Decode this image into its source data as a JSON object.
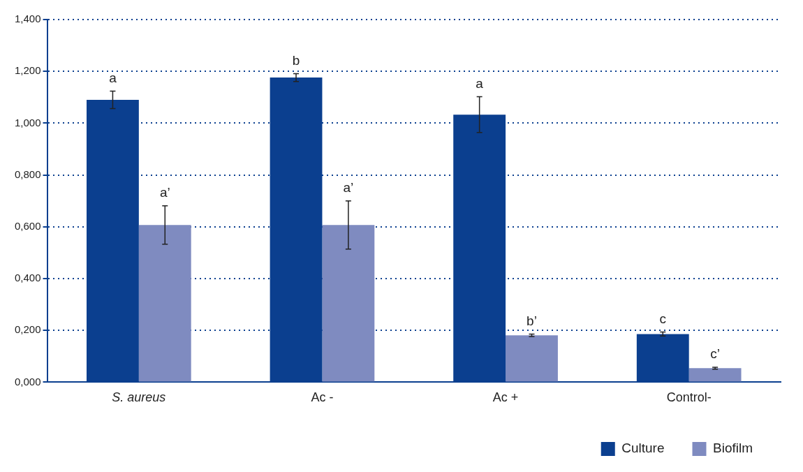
{
  "chart_data": {
    "type": "bar",
    "categories": [
      "S. aureus",
      "Ac -",
      "Ac +",
      "Control-"
    ],
    "series": [
      {
        "name": "Culture",
        "color": "#0b3f8f",
        "values": [
          1.09,
          1.176,
          1.033,
          0.186
        ],
        "errors": [
          0.034,
          0.015,
          0.069,
          0.008
        ]
      },
      {
        "name": "Biofilm",
        "color": "#7f8bc0",
        "values": [
          0.607,
          0.607,
          0.181,
          0.054
        ],
        "errors": [
          0.074,
          0.093,
          0.005,
          0.004
        ]
      }
    ],
    "ylim": [
      0,
      1.4
    ],
    "yticks": [
      {
        "value": 0,
        "label": "0,000"
      },
      {
        "value": 0.2,
        "label": "0,200"
      },
      {
        "value": 0.4,
        "label": "0,400"
      },
      {
        "value": 0.6,
        "label": "0,600"
      },
      {
        "value": 0.8,
        "label": "0,800"
      },
      {
        "value": 1,
        "label": "1,000"
      },
      {
        "value": 1.2,
        "label": "1,200"
      },
      {
        "value": 1.4,
        "label": "1,400"
      }
    ],
    "grid": "y",
    "legend": "bottom right",
    "annotations": [
      {
        "text": "a",
        "x": "S. aureus",
        "y": 1.09
      },
      {
        "text": "b",
        "x": "Ac -",
        "y": 1.176
      },
      {
        "text": "a",
        "x": "Ac +",
        "y": 1.033
      },
      {
        "text": "c",
        "x": "Control-",
        "y": 0.186
      },
      {
        "text": "a’",
        "x": "S. aureus",
        "y": 0.607
      },
      {
        "text": "a’",
        "x": "Ac -",
        "y": 0.607
      },
      {
        "text": "b’",
        "x": "Ac +",
        "y": 0.181
      },
      {
        "text": "c’",
        "x": "Control-",
        "y": 0.054
      }
    ]
  }
}
